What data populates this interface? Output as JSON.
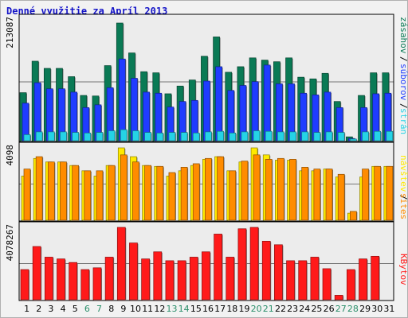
{
  "title": "Denné využitie za Apríl 2013",
  "colors": {
    "visits": "#0a7a55",
    "files": "#1f3cff",
    "hits": "#25d3e6",
    "pages": "#ffea00",
    "sites": "#ff8c00",
    "kbytes": "#ff1a1a",
    "weekend_label": "#2a8f6a",
    "title": "#1515c8"
  },
  "chart_data": [
    {
      "type": "bar",
      "name": "usage-top",
      "categories": [
        "1",
        "2",
        "3",
        "4",
        "5",
        "6",
        "7",
        "8",
        "9",
        "10",
        "11",
        "12",
        "13",
        "14",
        "15",
        "16",
        "17",
        "18",
        "19",
        "20",
        "21",
        "22",
        "23",
        "24",
        "25",
        "26",
        "27",
        "28",
        "29",
        "30",
        "31"
      ],
      "weekend_days": [
        "6",
        "7",
        "13",
        "14",
        "20",
        "21",
        "27",
        "28"
      ],
      "ytick_label": "213087",
      "ymax": 213087,
      "right_labels": [
        "zásahov",
        "súborov",
        "strán"
      ],
      "series": [
        {
          "name": "zásahov",
          "key": "visits",
          "values": [
            87000,
            144000,
            131000,
            131000,
            116000,
            82000,
            81000,
            136000,
            213087,
            159000,
            125000,
            123000,
            85000,
            99000,
            110000,
            153000,
            188000,
            124000,
            134000,
            150000,
            146000,
            143000,
            150000,
            115000,
            112000,
            122000,
            71000,
            7000,
            82000,
            123000,
            123000
          ]
        },
        {
          "name": "súborov",
          "key": "files",
          "values": [
            68000,
            105000,
            94000,
            94000,
            88000,
            60000,
            65000,
            96000,
            148000,
            113000,
            88000,
            86000,
            61000,
            71000,
            73000,
            108000,
            134000,
            91000,
            100000,
            107000,
            137000,
            103000,
            103000,
            86000,
            83000,
            88000,
            60000,
            4000,
            60000,
            85000,
            86000
          ]
        },
        {
          "name": "strán",
          "key": "hits",
          "values": [
            11000,
            16000,
            16000,
            16000,
            15000,
            14000,
            15000,
            18000,
            20000,
            18000,
            15000,
            14000,
            15000,
            15000,
            14000,
            16000,
            17000,
            14000,
            16000,
            18000,
            17000,
            16000,
            16000,
            16000,
            15000,
            16000,
            15000,
            3000,
            16000,
            17000,
            17000
          ]
        }
      ]
    },
    {
      "type": "bar",
      "name": "usage-middle",
      "categories": [
        "1",
        "2",
        "3",
        "4",
        "5",
        "6",
        "7",
        "8",
        "9",
        "10",
        "11",
        "12",
        "13",
        "14",
        "15",
        "16",
        "17",
        "18",
        "19",
        "20",
        "21",
        "22",
        "23",
        "24",
        "25",
        "26",
        "27",
        "28",
        "29",
        "30",
        "31"
      ],
      "ytick_label": "4098",
      "ymax": 4098,
      "right_labels": [
        "sites",
        "návštev"
      ],
      "series": [
        {
          "name": "návštev",
          "key": "pages",
          "values": [
            2500,
            3500,
            3300,
            3300,
            3100,
            2800,
            2500,
            3100,
            4098,
            3600,
            3100,
            3050,
            2500,
            2800,
            3100,
            3450,
            3600,
            2800,
            3300,
            4098,
            3700,
            3400,
            3400,
            2800,
            2800,
            2900,
            2450,
            400,
            2450,
            3050,
            3050
          ]
        },
        {
          "name": "sites",
          "key": "sites",
          "values": [
            2900,
            3600,
            3300,
            3300,
            3100,
            2800,
            2800,
            3100,
            3700,
            3300,
            3100,
            3050,
            2700,
            3000,
            3200,
            3500,
            3600,
            2800,
            3350,
            3700,
            3450,
            3500,
            3450,
            3000,
            2900,
            2900,
            2600,
            500,
            2900,
            3050,
            3050
          ]
        }
      ]
    },
    {
      "type": "bar",
      "name": "usage-bottom",
      "categories": [
        "1",
        "2",
        "3",
        "4",
        "5",
        "6",
        "7",
        "8",
        "9",
        "10",
        "11",
        "12",
        "13",
        "14",
        "15",
        "16",
        "17",
        "18",
        "19",
        "20",
        "21",
        "22",
        "23",
        "24",
        "25",
        "26",
        "27",
        "28",
        "29",
        "30",
        "31"
      ],
      "ytick_label": "4078267",
      "ymax": 4078267,
      "right_labels": [
        "KBytov"
      ],
      "series": [
        {
          "name": "KBytov",
          "key": "kbytes",
          "values": [
            1700000,
            3000000,
            2400000,
            2300000,
            2100000,
            1700000,
            1800000,
            2400000,
            4078267,
            3200000,
            2300000,
            2700000,
            2200000,
            2200000,
            2400000,
            2700000,
            3700000,
            2400000,
            4000000,
            4078267,
            3300000,
            3100000,
            2200000,
            2200000,
            2400000,
            1750000,
            250000,
            1700000,
            2300000,
            2450000,
            0
          ]
        }
      ]
    }
  ]
}
